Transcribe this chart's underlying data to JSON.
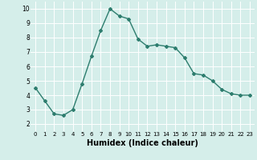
{
  "x": [
    0,
    1,
    2,
    3,
    4,
    5,
    6,
    7,
    8,
    9,
    10,
    11,
    12,
    13,
    14,
    15,
    16,
    17,
    18,
    19,
    20,
    21,
    22,
    23
  ],
  "y": [
    4.5,
    3.6,
    2.7,
    2.6,
    3.0,
    4.8,
    6.7,
    8.5,
    10.0,
    9.5,
    9.3,
    7.9,
    7.4,
    7.5,
    7.4,
    7.3,
    6.6,
    5.5,
    5.4,
    5.0,
    4.4,
    4.1,
    4.0,
    4.0
  ],
  "line_color": "#2d7d6e",
  "marker": "D",
  "markersize": 2,
  "linewidth": 1.0,
  "bg_color": "#d5eeea",
  "grid_color": "#ffffff",
  "xlabel": "Humidex (Indice chaleur)",
  "xlabel_fontsize": 7,
  "xlabel_fontweight": "bold",
  "xtick_fontsize": 5,
  "ytick_fontsize": 5.5,
  "xlim": [
    -0.5,
    23.5
  ],
  "ylim": [
    1.5,
    10.5
  ],
  "yticks": [
    2,
    3,
    4,
    5,
    6,
    7,
    8,
    9,
    10
  ],
  "xticks": [
    0,
    1,
    2,
    3,
    4,
    5,
    6,
    7,
    8,
    9,
    10,
    11,
    12,
    13,
    14,
    15,
    16,
    17,
    18,
    19,
    20,
    21,
    22,
    23
  ]
}
